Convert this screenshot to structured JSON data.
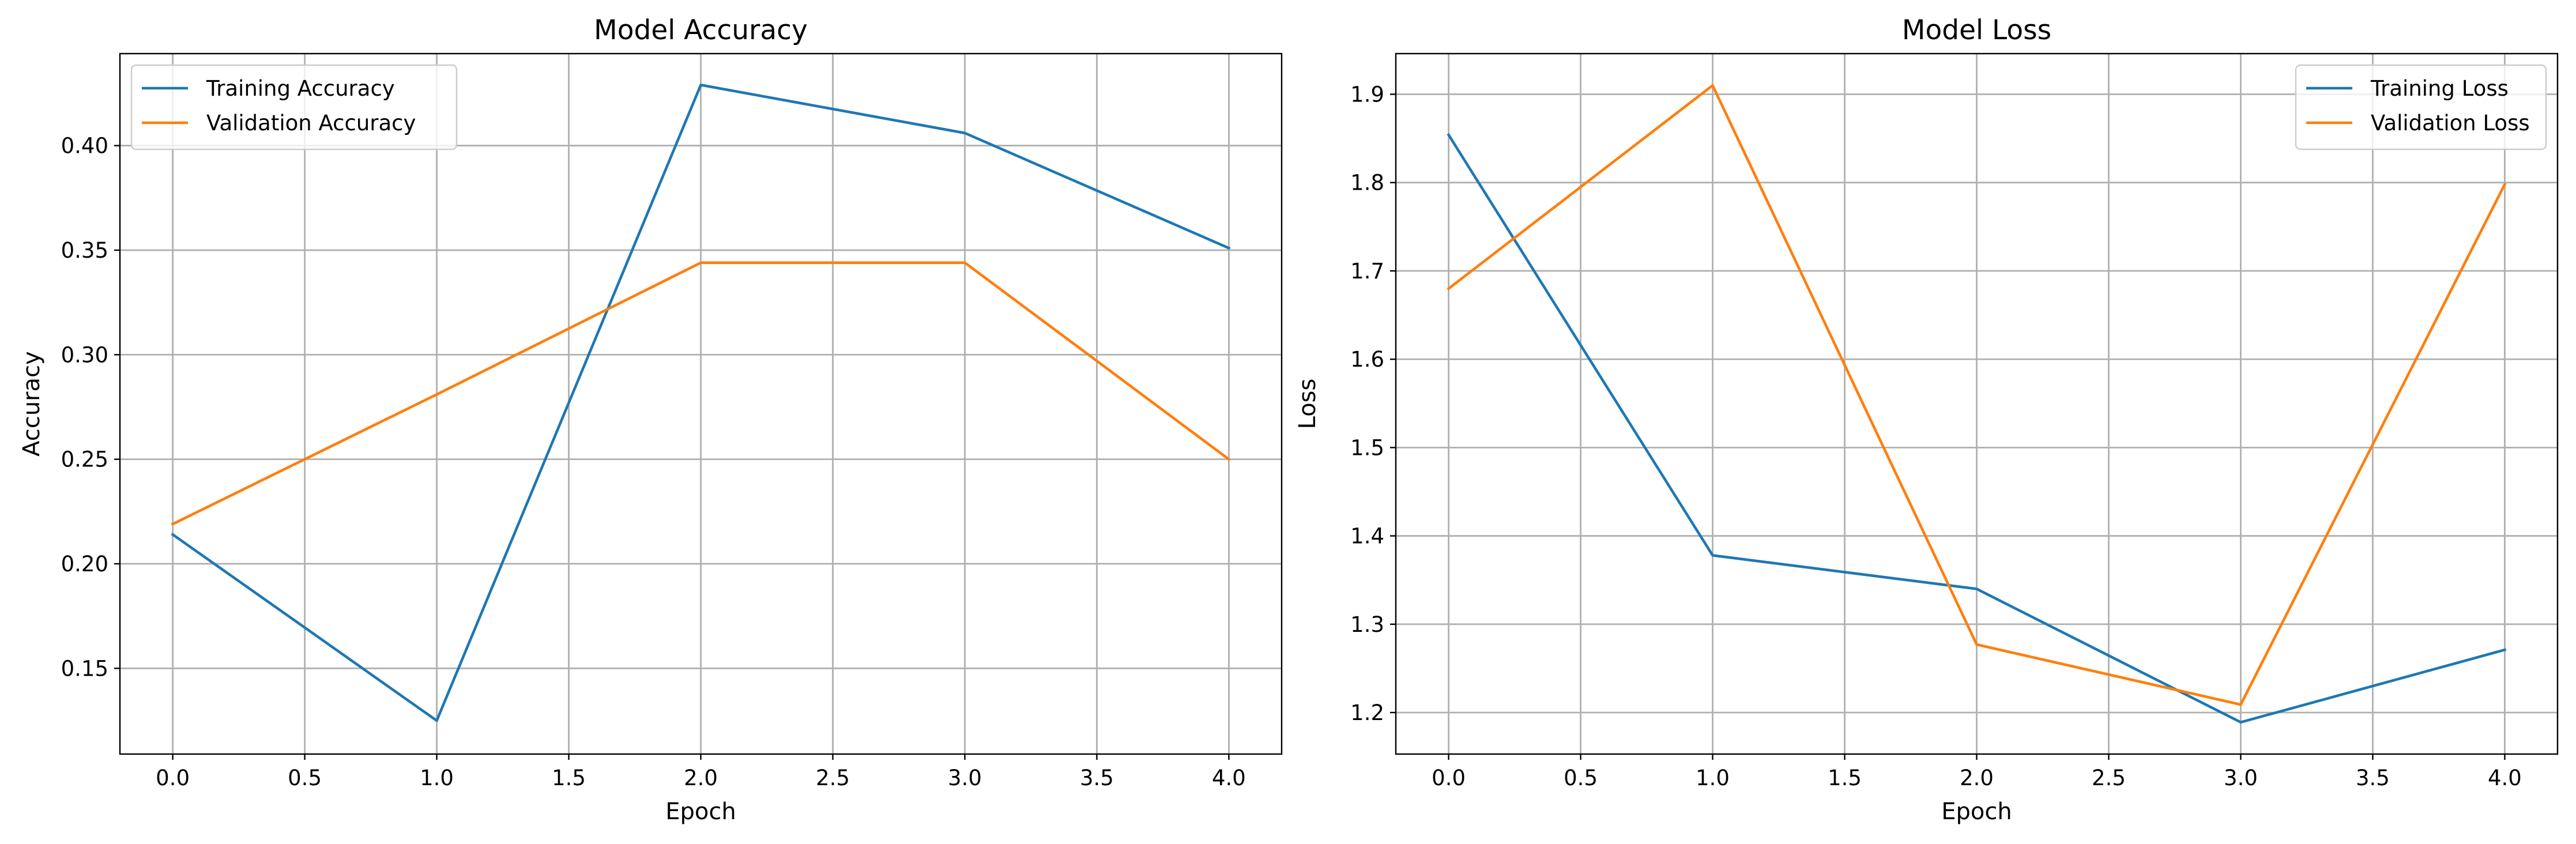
{
  "chart_data": [
    {
      "type": "line",
      "title": "Model Accuracy",
      "xlabel": "Epoch",
      "ylabel": "Accuracy",
      "x": [
        0,
        1,
        2,
        3,
        4
      ],
      "xlim": [
        -0.2,
        4.2
      ],
      "ylim": [
        0.109,
        0.444
      ],
      "xticks": [
        0.0,
        0.5,
        1.0,
        1.5,
        2.0,
        2.5,
        3.0,
        3.5,
        4.0
      ],
      "xtick_labels": [
        "0.0",
        "0.5",
        "1.0",
        "1.5",
        "2.0",
        "2.5",
        "3.0",
        "3.5",
        "4.0"
      ],
      "yticks": [
        0.15,
        0.2,
        0.25,
        0.3,
        0.35,
        0.4
      ],
      "ytick_labels": [
        "0.15",
        "0.20",
        "0.25",
        "0.30",
        "0.35",
        "0.40"
      ],
      "grid": true,
      "legend_position": "upper-left",
      "series": [
        {
          "name": "Training Accuracy",
          "color": "#1f77b4",
          "values": [
            0.214,
            0.125,
            0.429,
            0.406,
            0.351
          ]
        },
        {
          "name": "Validation Accuracy",
          "color": "#ff7f0e",
          "values": [
            0.219,
            0.281,
            0.344,
            0.344,
            0.25
          ]
        }
      ]
    },
    {
      "type": "line",
      "title": "Model Loss",
      "xlabel": "Epoch",
      "ylabel": "Loss",
      "x": [
        0,
        1,
        2,
        3,
        4
      ],
      "xlim": [
        -0.2,
        4.2
      ],
      "ylim": [
        1.153,
        1.946
      ],
      "xticks": [
        0.0,
        0.5,
        1.0,
        1.5,
        2.0,
        2.5,
        3.0,
        3.5,
        4.0
      ],
      "xtick_labels": [
        "0.0",
        "0.5",
        "1.0",
        "1.5",
        "2.0",
        "2.5",
        "3.0",
        "3.5",
        "4.0"
      ],
      "yticks": [
        1.2,
        1.3,
        1.4,
        1.5,
        1.6,
        1.7,
        1.8,
        1.9
      ],
      "ytick_labels": [
        "1.2",
        "1.3",
        "1.4",
        "1.5",
        "1.6",
        "1.7",
        "1.8",
        "1.9"
      ],
      "grid": true,
      "legend_position": "upper-right",
      "series": [
        {
          "name": "Training Loss",
          "color": "#1f77b4",
          "values": [
            1.854,
            1.378,
            1.34,
            1.189,
            1.271
          ]
        },
        {
          "name": "Validation Loss",
          "color": "#ff7f0e",
          "values": [
            1.68,
            1.91,
            1.277,
            1.209,
            1.798
          ]
        }
      ]
    }
  ]
}
